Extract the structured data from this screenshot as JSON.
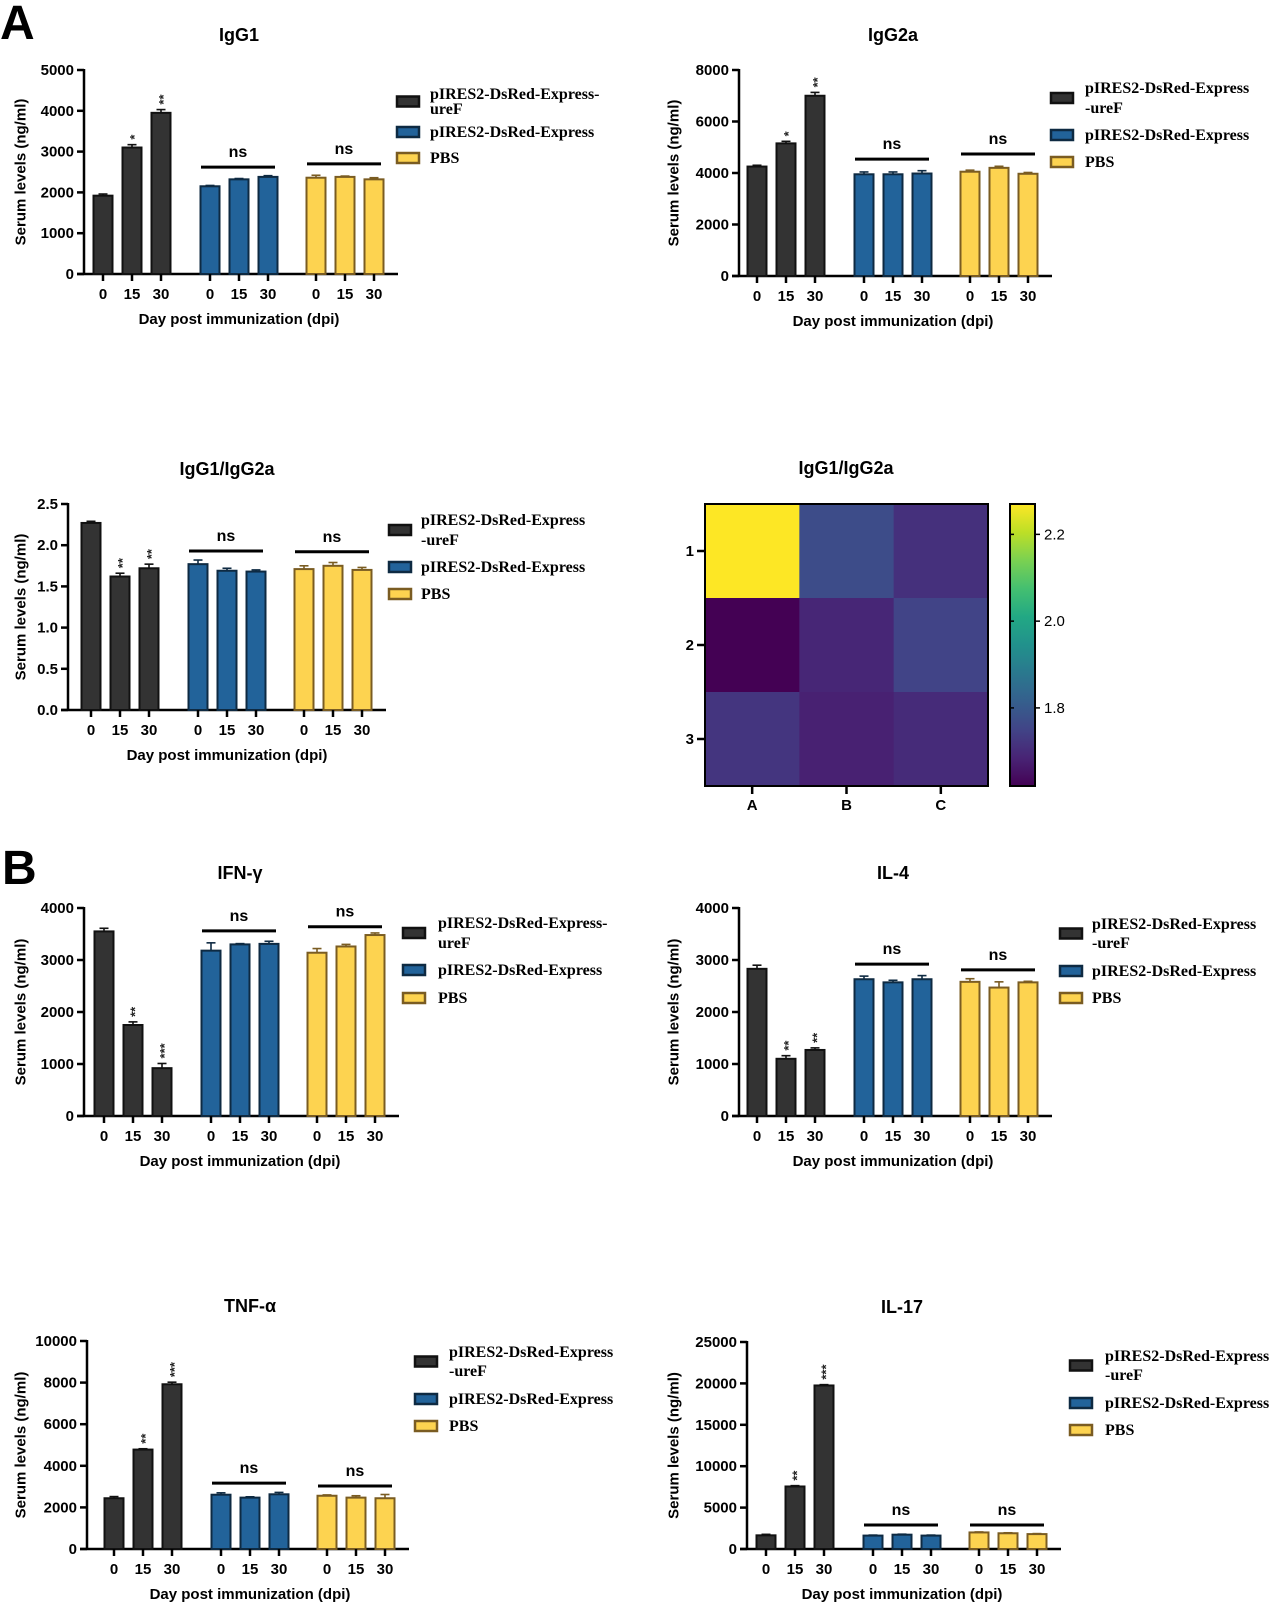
{
  "figure": {
    "panel_labels": [
      "A",
      "B"
    ]
  },
  "chart_data": [
    {
      "id": "igg1",
      "panel": "A",
      "type": "bar",
      "title": "IgG1",
      "xlabel": "Day post immunization (dpi)",
      "ylabel": "Serum levels (ng/ml)",
      "ylim": [
        0,
        5000
      ],
      "yticks": [
        0,
        1000,
        2000,
        3000,
        4000,
        5000
      ],
      "ytick_labels": [
        "0",
        "1000",
        "2000",
        "3000",
        "4000",
        "5000"
      ],
      "categories": [
        "0",
        "15",
        "30"
      ],
      "legend": "right",
      "series": [
        {
          "name": "pIRES2-DsRed-Express-ureF",
          "legend_lines": [
            "pIRES2-DsRed-Express-",
            "ureF"
          ],
          "color": "#333333",
          "edge": "#111111",
          "values": [
            1920,
            3100,
            3950
          ],
          "errors": [
            40,
            70,
            80
          ],
          "significance": [
            "",
            "*",
            "**"
          ]
        },
        {
          "name": "pIRES2-DsRed-Express",
          "legend_lines": [
            "pIRES2-DsRed-Express"
          ],
          "color": "#22639a",
          "edge": "#0e2a42",
          "values": [
            2150,
            2320,
            2380
          ],
          "errors": [
            20,
            20,
            30
          ],
          "significance": [
            "",
            "",
            ""
          ]
        },
        {
          "name": "PBS",
          "legend_lines": [
            "PBS"
          ],
          "color": "#fdd350",
          "edge": "#7a5c22",
          "values": [
            2360,
            2380,
            2320
          ],
          "errors": [
            60,
            20,
            40
          ],
          "significance": [
            "",
            "",
            ""
          ]
        }
      ],
      "annotations": [
        {
          "series": 1,
          "text": "ns",
          "y": 2620
        },
        {
          "series": 2,
          "text": "ns",
          "y": 2700
        }
      ]
    },
    {
      "id": "igg2a",
      "panel": "A",
      "type": "bar",
      "title": "IgG2a",
      "xlabel": "Day post immunization (dpi)",
      "ylabel": "Serum levels (ng/ml)",
      "ylim": [
        0,
        8000
      ],
      "yticks": [
        0,
        2000,
        4000,
        6000,
        8000
      ],
      "ytick_labels": [
        "0",
        "2000",
        "4000",
        "6000",
        "8000"
      ],
      "categories": [
        "0",
        "15",
        "30"
      ],
      "legend": "right",
      "series": [
        {
          "name": "pIRES2-DsRed-Express-ureF",
          "legend_lines": [
            "pIRES2-DsRed-Express",
            "-ureF"
          ],
          "color": "#333333",
          "edge": "#111111",
          "values": [
            4250,
            5150,
            7000
          ],
          "errors": [
            50,
            80,
            130
          ],
          "significance": [
            "",
            "*",
            "**"
          ]
        },
        {
          "name": "pIRES2-DsRed-Express",
          "legend_lines": [
            "pIRES2-DsRed-Express"
          ],
          "color": "#22639a",
          "edge": "#0e2a42",
          "values": [
            3950,
            3950,
            3980
          ],
          "errors": [
            90,
            90,
            110
          ],
          "significance": [
            "",
            "",
            ""
          ]
        },
        {
          "name": "PBS",
          "legend_lines": [
            "PBS"
          ],
          "color": "#fdd350",
          "edge": "#7a5c22",
          "values": [
            4050,
            4200,
            3970
          ],
          "errors": [
            60,
            60,
            50
          ],
          "significance": [
            "",
            "",
            ""
          ]
        }
      ],
      "annotations": [
        {
          "series": 1,
          "text": "ns",
          "y": 4540
        },
        {
          "series": 2,
          "text": "ns",
          "y": 4740
        }
      ]
    },
    {
      "id": "igg1_igg2a_ratio",
      "panel": "A",
      "type": "bar",
      "title": "IgG1/IgG2a",
      "xlabel": "Day post immunization (dpi)",
      "ylabel": "Serum levels (ng/ml)",
      "ylim": [
        0,
        2.5
      ],
      "yticks": [
        0,
        0.5,
        1.0,
        1.5,
        2.0,
        2.5
      ],
      "ytick_labels": [
        "0.0",
        "0.5",
        "1.0",
        "1.5",
        "2.0",
        "2.5"
      ],
      "categories": [
        "0",
        "15",
        "30"
      ],
      "legend": "right",
      "series": [
        {
          "name": "pIRES2-DsRed-Express-ureF",
          "legend_lines": [
            "pIRES2-DsRed-Express",
            "-ureF"
          ],
          "color": "#333333",
          "edge": "#111111",
          "values": [
            2.27,
            1.62,
            1.72
          ],
          "errors": [
            0.02,
            0.04,
            0.05
          ],
          "significance": [
            "",
            "**",
            "**"
          ]
        },
        {
          "name": "pIRES2-DsRed-Express",
          "legend_lines": [
            "pIRES2-DsRed-Express"
          ],
          "color": "#22639a",
          "edge": "#0e2a42",
          "values": [
            1.77,
            1.69,
            1.68
          ],
          "errors": [
            0.05,
            0.03,
            0.02
          ],
          "significance": [
            "",
            "",
            ""
          ]
        },
        {
          "name": "PBS",
          "legend_lines": [
            "PBS"
          ],
          "color": "#fdd350",
          "edge": "#7a5c22",
          "values": [
            1.71,
            1.75,
            1.7
          ],
          "errors": [
            0.04,
            0.04,
            0.03
          ],
          "significance": [
            "",
            "",
            ""
          ]
        }
      ],
      "annotations": [
        {
          "series": 1,
          "text": "ns",
          "y": 1.93
        },
        {
          "series": 2,
          "text": "ns",
          "y": 1.92
        }
      ]
    },
    {
      "id": "igg1_igg2a_heatmap",
      "panel": "A",
      "type": "heatmap",
      "title": "IgG1/IgG2a",
      "rows": [
        "1",
        "2",
        "3"
      ],
      "cols": [
        "A",
        "B",
        "C"
      ],
      "values": [
        [
          2.27,
          1.77,
          1.71
        ],
        [
          1.62,
          1.69,
          1.75
        ],
        [
          1.72,
          1.68,
          1.7
        ]
      ],
      "colorbar": {
        "colormap": "viridis",
        "range": [
          1.62,
          2.27
        ],
        "ticks": [
          1.8,
          2.0,
          2.2
        ],
        "tick_labels": [
          "1.8",
          "2.0",
          "2.2"
        ]
      }
    },
    {
      "id": "ifn_gamma",
      "panel": "B",
      "type": "bar",
      "title": "IFN-γ",
      "xlabel": "Day post immunization (dpi)",
      "ylabel": "Serum levels (ng/ml)",
      "ylim": [
        0,
        4000
      ],
      "yticks": [
        0,
        1000,
        2000,
        3000,
        4000
      ],
      "ytick_labels": [
        "0",
        "1000",
        "2000",
        "3000",
        "4000"
      ],
      "categories": [
        "0",
        "15",
        "30"
      ],
      "legend": "right",
      "series": [
        {
          "name": "pIRES2-DsRed-Express-ureF",
          "legend_lines": [
            "pIRES2-DsRed-Express-",
            "ureF"
          ],
          "color": "#333333",
          "edge": "#111111",
          "values": [
            3550,
            1750,
            920
          ],
          "errors": [
            60,
            60,
            90
          ],
          "significance": [
            "",
            "**",
            "***"
          ]
        },
        {
          "name": "pIRES2-DsRed-Express",
          "legend_lines": [
            "pIRES2-DsRed-Express"
          ],
          "color": "#22639a",
          "edge": "#0e2a42",
          "values": [
            3180,
            3300,
            3310
          ],
          "errors": [
            150,
            15,
            50
          ],
          "significance": [
            "",
            "",
            ""
          ]
        },
        {
          "name": "PBS",
          "legend_lines": [
            "PBS"
          ],
          "color": "#fdd350",
          "edge": "#7a5c22",
          "values": [
            3140,
            3260,
            3480
          ],
          "errors": [
            80,
            40,
            40
          ],
          "significance": [
            "",
            "",
            ""
          ]
        }
      ],
      "annotations": [
        {
          "series": 1,
          "text": "ns",
          "y": 3560
        },
        {
          "series": 2,
          "text": "ns",
          "y": 3640
        }
      ]
    },
    {
      "id": "il4",
      "panel": "B",
      "type": "bar",
      "title": "IL-4",
      "xlabel": "Day post immunization (dpi)",
      "ylabel": "Serum levels (ng/ml)",
      "ylim": [
        0,
        4000
      ],
      "yticks": [
        0,
        1000,
        2000,
        3000,
        4000
      ],
      "ytick_labels": [
        "0",
        "1000",
        "2000",
        "3000",
        "4000"
      ],
      "categories": [
        "0",
        "15",
        "30"
      ],
      "legend": "right",
      "series": [
        {
          "name": "pIRES2-DsRed-Express-ureF",
          "legend_lines": [
            "pIRES2-DsRed-Express",
            "-ureF"
          ],
          "color": "#333333",
          "edge": "#111111",
          "values": [
            2830,
            1100,
            1270
          ],
          "errors": [
            70,
            60,
            40
          ],
          "significance": [
            "",
            "**",
            "**"
          ]
        },
        {
          "name": "pIRES2-DsRed-Express",
          "legend_lines": [
            "pIRES2-DsRed-Express"
          ],
          "color": "#22639a",
          "edge": "#0e2a42",
          "values": [
            2630,
            2570,
            2630
          ],
          "errors": [
            60,
            40,
            70
          ],
          "significance": [
            "",
            "",
            ""
          ]
        },
        {
          "name": "PBS",
          "legend_lines": [
            "PBS"
          ],
          "color": "#fdd350",
          "edge": "#7a5c22",
          "values": [
            2580,
            2470,
            2570
          ],
          "errors": [
            60,
            110,
            20
          ],
          "significance": [
            "",
            "",
            ""
          ]
        }
      ],
      "annotations": [
        {
          "series": 1,
          "text": "ns",
          "y": 2920
        },
        {
          "series": 2,
          "text": "ns",
          "y": 2810
        }
      ]
    },
    {
      "id": "tnf_alpha",
      "panel": "B",
      "type": "bar",
      "title": "TNF-α",
      "xlabel": "Day post immunization (dpi)",
      "ylabel": "Serum levels (ng/ml)",
      "ylim": [
        0,
        10000
      ],
      "yticks": [
        0,
        2000,
        4000,
        6000,
        8000,
        10000
      ],
      "ytick_labels": [
        "0",
        "2000",
        "4000",
        "6000",
        "8000",
        "10000"
      ],
      "categories": [
        "0",
        "15",
        "30"
      ],
      "legend": "right",
      "series": [
        {
          "name": "pIRES2-DsRed-Express-ureF",
          "legend_lines": [
            "pIRES2-DsRed-Express",
            "-ureF"
          ],
          "color": "#333333",
          "edge": "#111111",
          "values": [
            2440,
            4780,
            7920
          ],
          "errors": [
            80,
            40,
            100
          ],
          "significance": [
            "",
            "**",
            "***"
          ]
        },
        {
          "name": "pIRES2-DsRed-Express",
          "legend_lines": [
            "pIRES2-DsRed-Express"
          ],
          "color": "#22639a",
          "edge": "#0e2a42",
          "values": [
            2610,
            2470,
            2630
          ],
          "errors": [
            90,
            40,
            90
          ],
          "significance": [
            "",
            "",
            ""
          ]
        },
        {
          "name": "PBS",
          "legend_lines": [
            "PBS"
          ],
          "color": "#fdd350",
          "edge": "#7a5c22",
          "values": [
            2560,
            2470,
            2440
          ],
          "errors": [
            40,
            90,
            180
          ],
          "significance": [
            "",
            "",
            ""
          ]
        }
      ],
      "annotations": [
        {
          "series": 1,
          "text": "ns",
          "y": 3170
        },
        {
          "series": 2,
          "text": "ns",
          "y": 3030
        }
      ]
    },
    {
      "id": "il17",
      "panel": "B",
      "type": "bar",
      "title": "IL-17",
      "xlabel": "Day post immunization (dpi)",
      "ylabel": "Serum levels (ng/ml)",
      "ylim": [
        0,
        25000
      ],
      "yticks": [
        0,
        5000,
        10000,
        15000,
        20000,
        25000
      ],
      "ytick_labels": [
        "0",
        "5000",
        "10000",
        "15000",
        "20000",
        "25000"
      ],
      "categories": [
        "0",
        "15",
        "30"
      ],
      "legend": "right",
      "series": [
        {
          "name": "pIRES2-DsRed-Express-ureF",
          "legend_lines": [
            "pIRES2-DsRed-Express",
            "-ureF"
          ],
          "color": "#333333",
          "edge": "#111111",
          "values": [
            1650,
            7550,
            19750
          ],
          "errors": [
            120,
            100,
            100
          ],
          "significance": [
            "",
            "**",
            "***"
          ]
        },
        {
          "name": "pIRES2-DsRed-Express",
          "legend_lines": [
            "pIRES2-DsRed-Express"
          ],
          "color": "#22639a",
          "edge": "#0e2a42",
          "values": [
            1620,
            1730,
            1620
          ],
          "errors": [
            60,
            60,
            60
          ],
          "significance": [
            "",
            "",
            ""
          ]
        },
        {
          "name": "PBS",
          "legend_lines": [
            "PBS"
          ],
          "color": "#fdd350",
          "edge": "#7a5c22",
          "values": [
            2000,
            1900,
            1800
          ],
          "errors": [
            60,
            60,
            60
          ],
          "significance": [
            "",
            "",
            ""
          ]
        }
      ],
      "annotations": [
        {
          "series": 1,
          "text": "ns",
          "y": 2900
        },
        {
          "series": 2,
          "text": "ns",
          "y": 2900
        }
      ]
    }
  ]
}
